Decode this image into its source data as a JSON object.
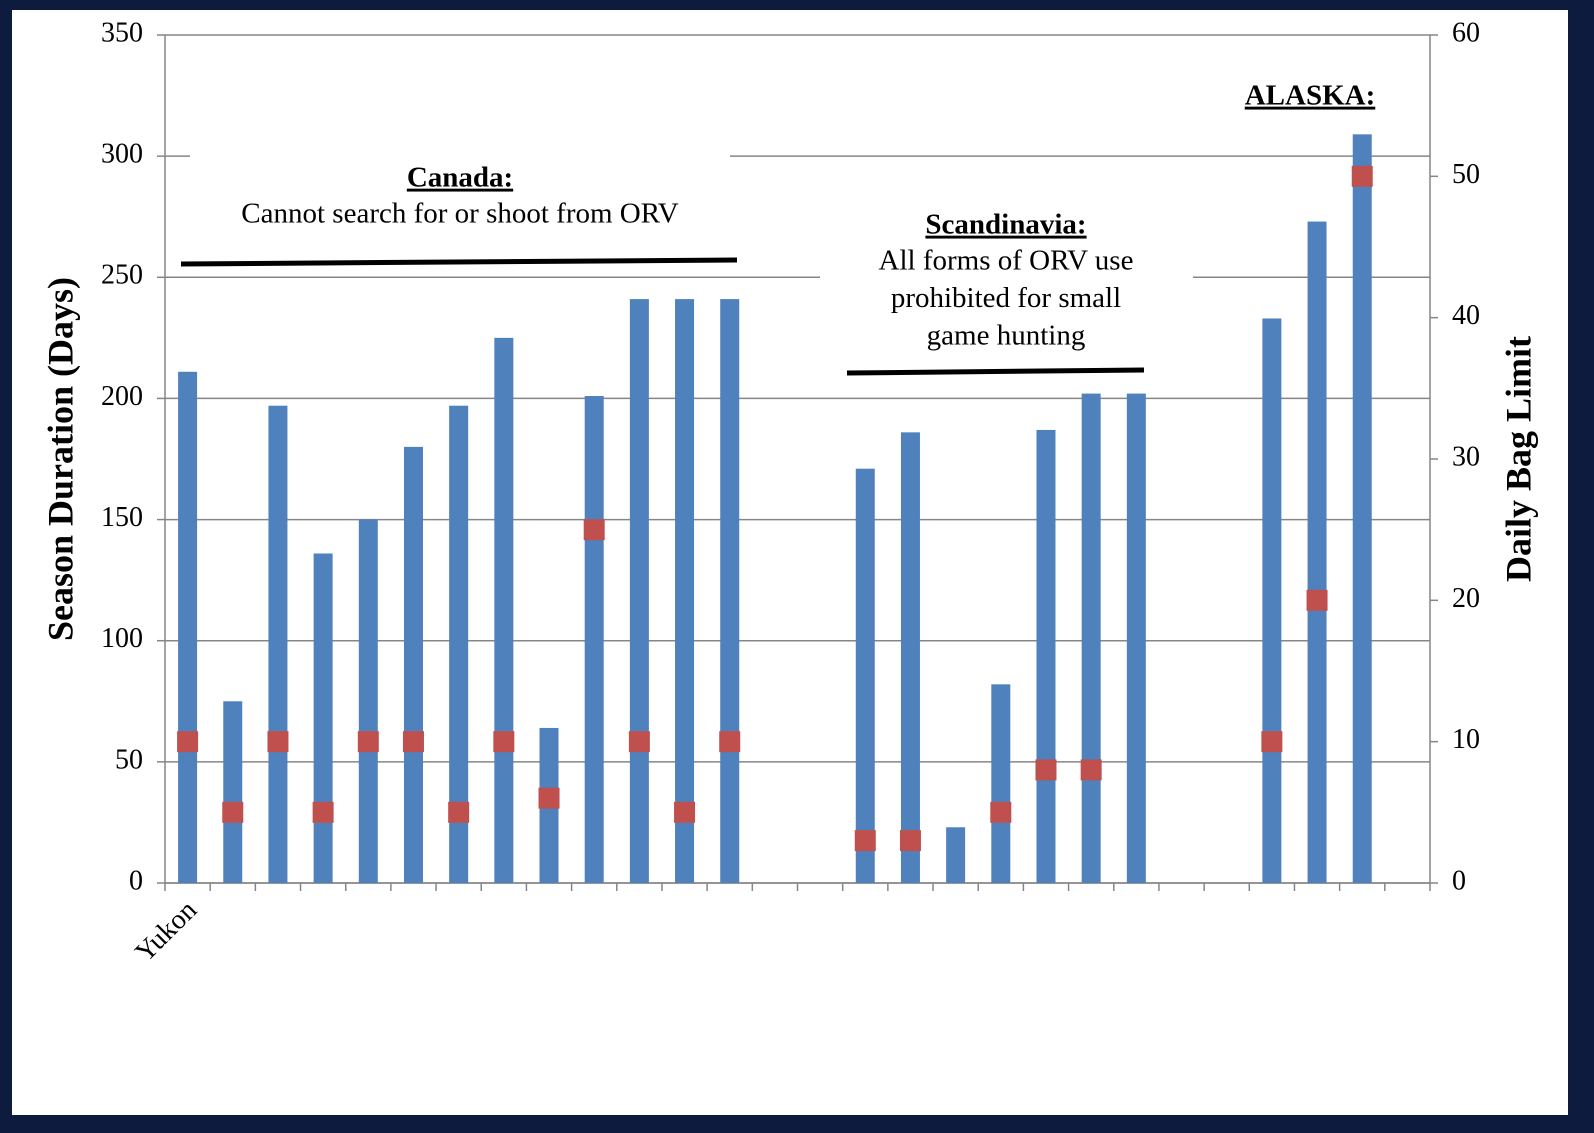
{
  "chart_data": {
    "type": "bar",
    "categories": [
      "Yukon",
      null,
      null,
      null,
      null,
      null,
      null,
      null,
      null,
      null,
      null,
      null,
      null,
      null,
      null,
      null,
      null,
      null,
      null,
      null,
      null,
      null,
      null,
      null,
      null,
      null,
      null,
      null
    ],
    "series": [
      {
        "name": "Season Duration (Days)",
        "type": "bar",
        "color": "#4f81bd",
        "values": [
          211,
          75,
          197,
          136,
          150,
          180,
          197,
          225,
          64,
          201,
          241,
          241,
          241,
          null,
          null,
          171,
          186,
          23,
          82,
          187,
          202,
          202,
          null,
          null,
          233,
          273,
          309,
          null
        ]
      },
      {
        "name": "Daily Bag Limit",
        "type": "marker",
        "axis": "y2",
        "color": "#c0504d",
        "values": [
          10,
          5,
          10,
          5,
          10,
          10,
          5,
          10,
          6,
          25,
          10,
          5,
          10,
          null,
          null,
          3,
          3,
          null,
          5,
          8,
          8,
          null,
          null,
          null,
          10,
          20,
          50,
          null
        ]
      }
    ],
    "ylabel": "Season Duration (Days)",
    "y2label": "Daily Bag Limit",
    "ylabel_color": "#5b8fcb",
    "y2label_color": "#c00000",
    "ylim": [
      0,
      350
    ],
    "yticks": [
      0,
      50,
      100,
      150,
      200,
      250,
      300,
      350
    ],
    "y2lim": [
      0,
      60
    ],
    "y2ticks": [
      0,
      10,
      20,
      30,
      40,
      50,
      60
    ],
    "grid": true,
    "annotations": [
      {
        "title": "Canada:",
        "lines": [
          "Cannot search for or shoot from ORV"
        ]
      },
      {
        "title": "Scandinavia:",
        "lines": [
          "All forms of ORV use",
          "prohibited for small",
          "game hunting"
        ]
      },
      {
        "title": "ALASKA:",
        "lines": []
      }
    ]
  }
}
